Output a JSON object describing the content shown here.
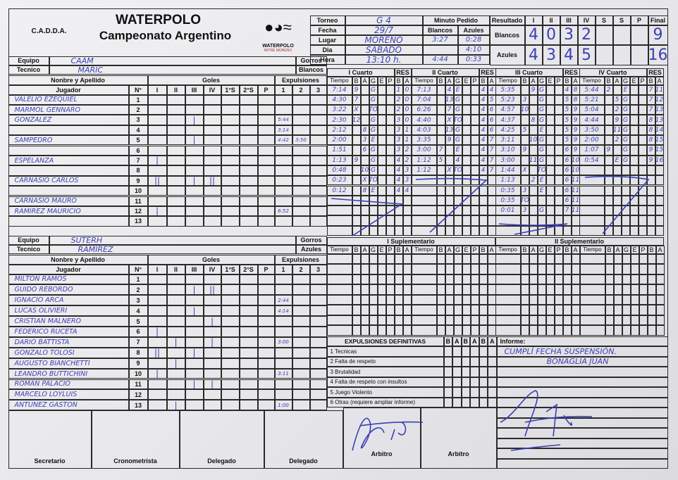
{
  "header": {
    "title": "WATERPOLO",
    "subtitle": "Campeonato Argentino",
    "org_logo": "C.A.D.D.A.",
    "club_logo_line1": "WATERPOLO",
    "club_logo_line2": "MITRE MORENO"
  },
  "match": {
    "labels": [
      "Torneo",
      "Fecha",
      "Lugar",
      "Dia",
      "Hora"
    ],
    "values": [
      "G 4",
      "29/7",
      "MORENO",
      "SABADO",
      "13:10 h."
    ]
  },
  "timeouts": {
    "title": "Minuto Pedido",
    "blancos_label": "Blancos",
    "azules_label": "Azules",
    "blancos": [
      "3:27",
      "",
      "4:44"
    ],
    "azules": [
      "0:28",
      "4:10",
      "0:33"
    ]
  },
  "result": {
    "label": "Resultado",
    "cols": [
      "I",
      "II",
      "III",
      "IV",
      "S",
      "S",
      "P",
      "Final"
    ],
    "blancos_label": "Blancos",
    "azules_label": "Azules",
    "blancos": [
      "4",
      "0",
      "3",
      "2",
      "",
      "",
      "",
      "9"
    ],
    "azules": [
      "4",
      "3",
      "4",
      "5",
      "",
      "",
      "",
      "16"
    ]
  },
  "labels": {
    "equipo": "Equipo",
    "tecnico": "Tecnico",
    "gorros": "Gorros",
    "nombre": "Nonbre y Apellido",
    "jugador": "Jugador",
    "numero": "N°",
    "goles": "Goles",
    "expulsiones": "Expulsiones",
    "goal_cols": [
      "I",
      "II",
      "III",
      "IV",
      "1°S",
      "2°S",
      "P"
    ],
    "exp_cols": [
      "1",
      "2",
      "3"
    ],
    "q_cols": [
      "Tiempo",
      "B",
      "A",
      "G",
      "E",
      "P",
      "B",
      "A"
    ],
    "res": "RES"
  },
  "team_a": {
    "cap": "Blancos",
    "name": "CAAM",
    "coach": "MARIC",
    "players": [
      {
        "n": "1",
        "name": "VALELIO EZEQUIEL",
        "goals": [
          "",
          "",
          "",
          "",
          "",
          "",
          ""
        ],
        "exp": [
          "",
          "",
          ""
        ]
      },
      {
        "n": "2",
        "name": "MARMOL GENNARO",
        "goals": [
          "",
          "",
          "",
          "",
          "",
          "",
          ""
        ],
        "exp": [
          "",
          "",
          ""
        ]
      },
      {
        "n": "3",
        "name": "GONZALEZ",
        "goals": [
          "",
          "",
          "|",
          "",
          "",
          "",
          ""
        ],
        "exp": [
          "5:44",
          "",
          ""
        ]
      },
      {
        "n": "4",
        "name": "",
        "goals": [
          "",
          "",
          "",
          "",
          "",
          "",
          ""
        ],
        "exp": [
          "3:14",
          "",
          ""
        ]
      },
      {
        "n": "5",
        "name": "SAMPEDRO",
        "goals": [
          "",
          "",
          "|",
          "",
          "",
          "",
          ""
        ],
        "exp": [
          "4:42",
          "3:50",
          ""
        ]
      },
      {
        "n": "6",
        "name": "",
        "goals": [
          "",
          "",
          "",
          "",
          "",
          "",
          ""
        ],
        "exp": [
          "",
          "",
          ""
        ]
      },
      {
        "n": "7",
        "name": "ESPELANZA",
        "goals": [
          "|",
          "",
          "",
          "",
          "",
          "",
          ""
        ],
        "exp": [
          "",
          "",
          ""
        ]
      },
      {
        "n": "8",
        "name": "",
        "goals": [
          "",
          "",
          "",
          "",
          "",
          "",
          ""
        ],
        "exp": [
          "",
          "",
          ""
        ]
      },
      {
        "n": "9",
        "name": "CARNASIO CARLOS",
        "goals": [
          "||",
          "",
          "|",
          "||",
          "",
          "",
          ""
        ],
        "exp": [
          "",
          "",
          ""
        ]
      },
      {
        "n": "10",
        "name": "",
        "goals": [
          "",
          "",
          "",
          "",
          "",
          "",
          ""
        ],
        "exp": [
          "",
          "",
          ""
        ]
      },
      {
        "n": "11",
        "name": "CARNASIO MAURO",
        "goals": [
          "",
          "",
          "",
          "",
          "",
          "",
          ""
        ],
        "exp": [
          "",
          "",
          ""
        ]
      },
      {
        "n": "12",
        "name": "RAMIREZ MAURICIO",
        "goals": [
          "|",
          "",
          "",
          "",
          "",
          "",
          ""
        ],
        "exp": [
          "6:52",
          "",
          ""
        ]
      },
      {
        "n": "13",
        "name": "",
        "goals": [
          "",
          "",
          "",
          "",
          "",
          "",
          ""
        ],
        "exp": [
          "",
          "",
          ""
        ]
      }
    ]
  },
  "team_b": {
    "cap": "Azules",
    "name": "SUTERH",
    "coach": "RAMIREZ",
    "players": [
      {
        "n": "1",
        "name": "MILTON RAMOS",
        "goals": [
          "",
          "",
          "",
          "",
          "",
          "",
          ""
        ],
        "exp": [
          "",
          "",
          ""
        ]
      },
      {
        "n": "2",
        "name": "GUIDO REBORDO",
        "goals": [
          "",
          "",
          "|",
          "||",
          "",
          "",
          ""
        ],
        "exp": [
          "",
          "",
          ""
        ]
      },
      {
        "n": "3",
        "name": "IGNACIO ARCA",
        "goals": [
          "",
          "",
          "",
          "",
          "",
          "",
          ""
        ],
        "exp": [
          "2:44",
          "",
          ""
        ]
      },
      {
        "n": "4",
        "name": "LUCAS OLIVIERI",
        "goals": [
          "",
          "",
          "|",
          "",
          "",
          "",
          ""
        ],
        "exp": [
          "4:14",
          "",
          ""
        ]
      },
      {
        "n": "5",
        "name": "CRISTIAN MALNERO",
        "goals": [
          "",
          "",
          "",
          "|",
          "",
          "",
          ""
        ],
        "exp": [
          "",
          "",
          ""
        ]
      },
      {
        "n": "6",
        "name": "FEDERICO RUCETA",
        "goals": [
          "|",
          "",
          "",
          "",
          "",
          "",
          ""
        ],
        "exp": [
          "",
          "",
          ""
        ]
      },
      {
        "n": "7",
        "name": "DARIO BATTISTA",
        "goals": [
          "",
          "|",
          "",
          "|",
          "",
          "",
          ""
        ],
        "exp": [
          "3:00",
          "",
          ""
        ]
      },
      {
        "n": "8",
        "name": "GONZALO TOLOSI",
        "goals": [
          "||",
          "",
          "|",
          "",
          "",
          "",
          ""
        ],
        "exp": [
          "",
          "",
          ""
        ]
      },
      {
        "n": "9",
        "name": "AUGUSTO BIANCHETTI",
        "goals": [
          "",
          "|",
          "",
          "",
          "",
          "",
          ""
        ],
        "exp": [
          "",
          "",
          ""
        ]
      },
      {
        "n": "10",
        "name": "LEANDRO BUTTICHINI",
        "goals": [
          "|",
          "",
          "",
          "",
          "",
          "",
          ""
        ],
        "exp": [
          "3:11",
          "",
          ""
        ]
      },
      {
        "n": "11",
        "name": "ROMAN PALACIO",
        "goals": [
          "",
          "",
          "|",
          "|",
          "",
          "",
          ""
        ],
        "exp": [
          "",
          "",
          ""
        ]
      },
      {
        "n": "12",
        "name": "MARCELO LOYLUIS",
        "goals": [
          "",
          "",
          "",
          "",
          "",
          "",
          ""
        ],
        "exp": [
          "",
          "",
          ""
        ]
      },
      {
        "n": "13",
        "name": "ANTUNEZ GASTON",
        "goals": [
          "",
          "|",
          "",
          "",
          "",
          "",
          ""
        ],
        "exp": [
          "1:00",
          "",
          ""
        ]
      }
    ]
  },
  "quarters": [
    {
      "title": "I Cuarto",
      "rows": [
        [
          "7:14",
          "9",
          "",
          "G",
          "",
          "",
          "1",
          "0"
        ],
        [
          "4:30",
          "7",
          "",
          "G",
          "",
          "",
          "2",
          "0"
        ],
        [
          "3:22",
          "X",
          "",
          "TO",
          "",
          "",
          "2",
          "0"
        ],
        [
          "2:30",
          "12",
          "",
          "G",
          "",
          "",
          "3",
          "0"
        ],
        [
          "2:12",
          "",
          "8",
          "G",
          "",
          "",
          "3",
          "1"
        ],
        [
          "2:00",
          "",
          "3",
          "E",
          "",
          "",
          "3",
          "1"
        ],
        [
          "1:51",
          "",
          "6",
          "G",
          "",
          "",
          "3",
          "2"
        ],
        [
          "1:13",
          "9",
          "",
          "G",
          "",
          "",
          "4",
          "2"
        ],
        [
          "0:48",
          "",
          "10",
          "G",
          "",
          "",
          "4",
          "3"
        ],
        [
          "0:23",
          "",
          "X",
          "TO",
          "",
          "",
          "4",
          "3"
        ],
        [
          "0:12",
          "",
          "8",
          "E",
          "",
          "",
          "4",
          "4"
        ]
      ]
    },
    {
      "title": "II Cuarto",
      "rows": [
        [
          "7:13",
          "",
          "4",
          "E",
          "",
          "",
          "4",
          "4"
        ],
        [
          "7:04",
          "",
          "13",
          "G",
          "",
          "",
          "4",
          "5"
        ],
        [
          "6:26",
          "",
          "7",
          "G",
          "",
          "",
          "4",
          "6"
        ],
        [
          "4:40",
          "",
          "X",
          "TO",
          "",
          "",
          "4",
          "6"
        ],
        [
          "4:03",
          "",
          "13",
          "G",
          "",
          "",
          "4",
          "6"
        ],
        [
          "3:35",
          "",
          "9",
          "G",
          "",
          "",
          "4",
          "7"
        ],
        [
          "3:00",
          "7",
          "",
          "E",
          "",
          "",
          "4",
          "7"
        ],
        [
          "1:12",
          "5",
          "",
          "4",
          "",
          "",
          "4",
          "7"
        ],
        [
          "1:12",
          "",
          "X",
          "TO",
          "",
          "",
          "4",
          "7"
        ]
      ]
    },
    {
      "title": "III Cuarto",
      "rows": [
        [
          "5:35",
          "",
          "9",
          "G",
          "",
          "",
          "4",
          "8"
        ],
        [
          "5:23",
          "3",
          "",
          "G",
          "",
          "",
          "5",
          "8"
        ],
        [
          "4:57",
          "10",
          "",
          "G",
          "",
          "",
          "5",
          "9"
        ],
        [
          "4:37",
          "",
          "8",
          "G",
          "",
          "",
          "5",
          "9"
        ],
        [
          "4:25",
          "5",
          "",
          "E",
          "",
          "",
          "5",
          "9"
        ],
        [
          "3:11",
          "",
          "10",
          "G",
          "",
          "",
          "5",
          "9"
        ],
        [
          "3:10",
          "9",
          "",
          "G",
          "",
          "",
          "6",
          "9"
        ],
        [
          "3:00",
          "",
          "11",
          "G",
          "",
          "",
          "6",
          "10"
        ],
        [
          "1:44",
          "X",
          "",
          "TO",
          "",
          "",
          "6",
          "10"
        ],
        [
          "1:13",
          "",
          "2",
          "E",
          "",
          "",
          "6",
          "11"
        ],
        [
          "0:35",
          "3",
          "",
          "E",
          "",
          "",
          "6",
          "11"
        ],
        [
          "0:35",
          "TO",
          "",
          "",
          "",
          "",
          "6",
          "11"
        ],
        [
          "0:01",
          "3",
          "",
          "G",
          "",
          "",
          "7",
          "11"
        ]
      ]
    },
    {
      "title": "IV Cuarto",
      "rows": [
        [
          "5:44",
          "2",
          "",
          "E",
          "",
          "",
          "7",
          "11"
        ],
        [
          "5:21",
          "",
          "5",
          "G",
          "",
          "",
          "7",
          "12"
        ],
        [
          "5:04",
          "",
          "2",
          "G",
          "",
          "",
          "7",
          "13"
        ],
        [
          "4:44",
          "",
          "9",
          "G",
          "",
          "",
          "8",
          "13"
        ],
        [
          "3:50",
          "",
          "11",
          "G",
          "",
          "",
          "8",
          "14"
        ],
        [
          "2:00",
          "",
          "2",
          "G",
          "",
          "",
          "8",
          "15"
        ],
        [
          "1:07",
          "9",
          "",
          "G",
          "",
          "",
          "9",
          "15"
        ],
        [
          "0:54",
          "",
          "E",
          "G",
          "",
          "",
          "9",
          "16"
        ]
      ]
    }
  ],
  "supplementary": [
    {
      "title": "I Suplementario"
    },
    {
      "title": "II Suplementario"
    }
  ],
  "expulsions_def": {
    "title": "EXPULSIONES DEFINITIVAS",
    "cols": [
      "B",
      "A",
      "B",
      "A",
      "B",
      "A"
    ],
    "items": [
      "1  Tecnicas",
      "2  Falta de respeto",
      "3  Brutalidad",
      "4  Falta de respeto con insultos",
      "5  Juego Violento",
      "6  Otras (requiere ampliar informe)"
    ]
  },
  "informe": {
    "label": "Informe:",
    "lines": [
      "CUMPLÍ FECHA SUSPENSIÓN.",
      "BONAGLIA JUAN"
    ]
  },
  "signatures": [
    "Secretario",
    "Cronometrista",
    "Delegado",
    "Delegado",
    "Arbitro",
    "Arbitro"
  ],
  "colors": {
    "ink": "#3b3fb4",
    "paper": "#ececee",
    "lines": "#2a2a2a"
  }
}
